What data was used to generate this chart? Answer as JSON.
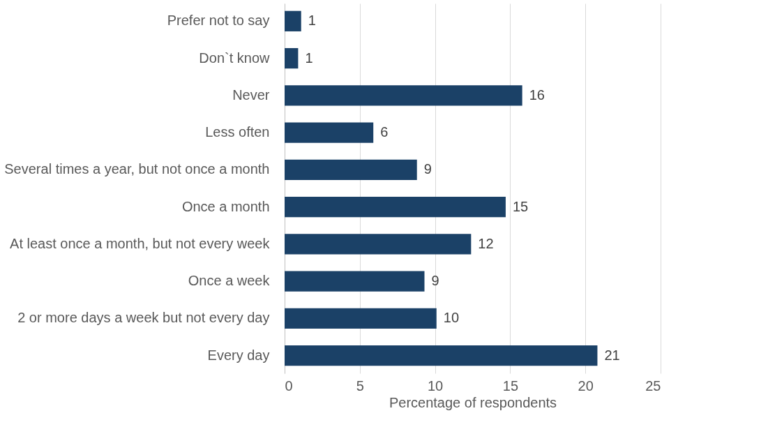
{
  "chart_data": {
    "type": "bar",
    "orientation": "horizontal",
    "xlabel": "Percentage of respondents",
    "categories": [
      "Prefer not to say",
      "Don`t know",
      "Never",
      "Less often",
      "Several times a year, but not once a month",
      "Once a month",
      "At least once a month, but not every week",
      "Once a week",
      "2 or more days a week but not every day",
      "Every day"
    ],
    "values": [
      1.1,
      0.9,
      15.8,
      5.9,
      8.8,
      14.7,
      12.4,
      9.3,
      10.1,
      20.8
    ],
    "value_labels": [
      "1",
      "1",
      "16",
      "6",
      "9",
      "15",
      "12",
      "9",
      "10",
      "21"
    ],
    "color": "#1b4167",
    "xlim": [
      0,
      25
    ],
    "xticks": [
      0,
      5,
      10,
      15,
      20,
      25
    ],
    "grid": "x"
  }
}
